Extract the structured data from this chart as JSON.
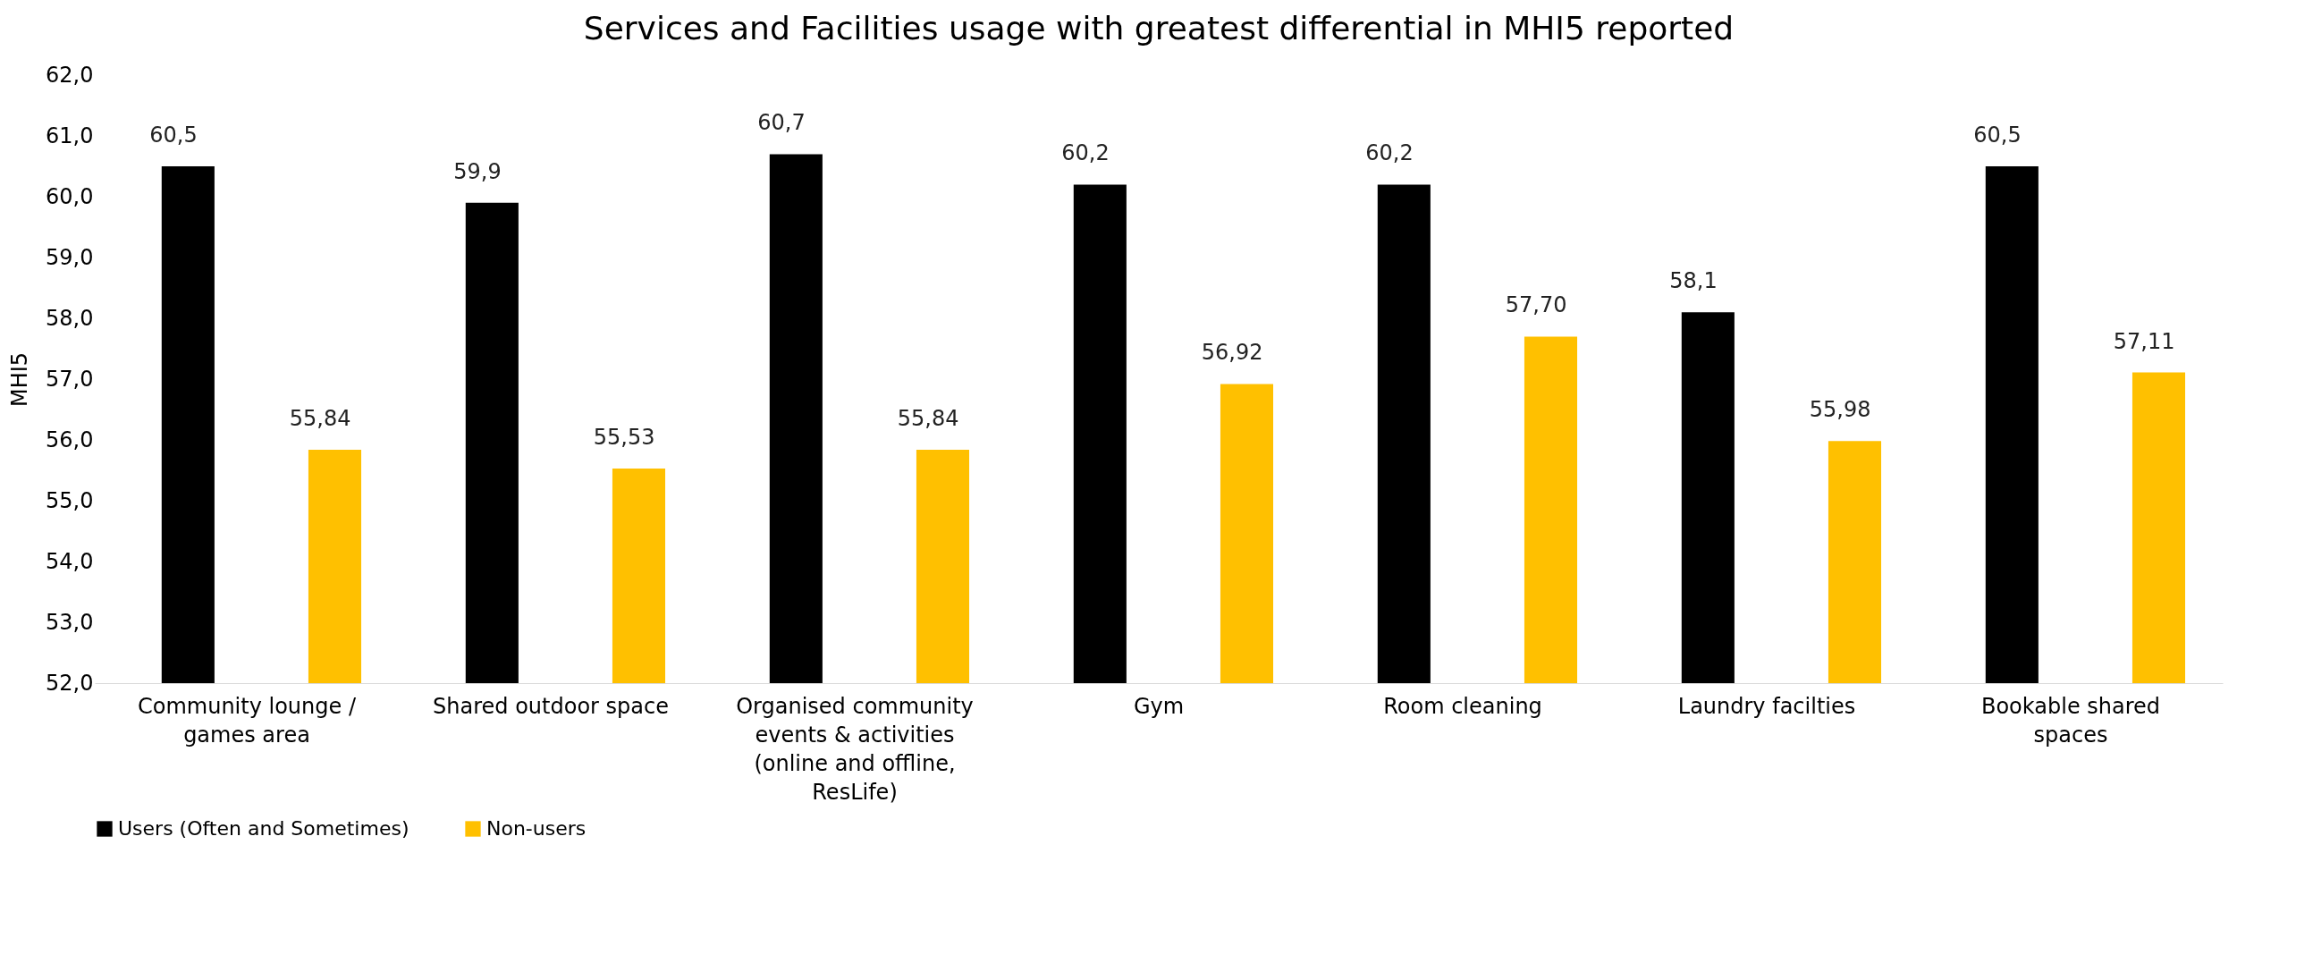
{
  "chart_data": {
    "type": "bar",
    "title": "Services and Facilities usage with greatest differential in MHI5 reported",
    "ylabel": "MHI5",
    "categories": [
      "Community lounge / games area",
      "Shared outdoor space",
      "Organised community events & activities (online and offline, ResLife)",
      "Gym",
      "Room cleaning",
      "Laundry facilties",
      "Bookable shared spaces"
    ],
    "series": [
      {
        "name": "Users (Often and Sometimes)",
        "color": "#000000",
        "values": [
          60.5,
          59.9,
          60.7,
          60.2,
          60.2,
          58.1,
          60.5
        ],
        "value_labels": [
          "60,5",
          "59,9",
          "60,7",
          "60,2",
          "60,2",
          "58,1",
          "60,5"
        ]
      },
      {
        "name": "Non-users",
        "color": "#ffc000",
        "values": [
          55.84,
          55.53,
          55.84,
          56.92,
          57.7,
          55.98,
          57.11
        ],
        "value_labels": [
          "55,84",
          "55,53",
          "55,84",
          "56,92",
          "57,70",
          "55,98",
          "57,11"
        ]
      }
    ],
    "ylim": [
      52,
      62
    ],
    "yticks": [
      {
        "value": 52,
        "label": "52,0"
      },
      {
        "value": 53,
        "label": "53,0"
      },
      {
        "value": 54,
        "label": "54,0"
      },
      {
        "value": 55,
        "label": "55,0"
      },
      {
        "value": 56,
        "label": "56,0"
      },
      {
        "value": 57,
        "label": "57,0"
      },
      {
        "value": 58,
        "label": "58,0"
      },
      {
        "value": 59,
        "label": "59,0"
      },
      {
        "value": 60,
        "label": "60,0"
      },
      {
        "value": 61,
        "label": "61,0"
      },
      {
        "value": 62,
        "label": "62,0"
      }
    ],
    "grid": false,
    "legend": "bottom"
  }
}
